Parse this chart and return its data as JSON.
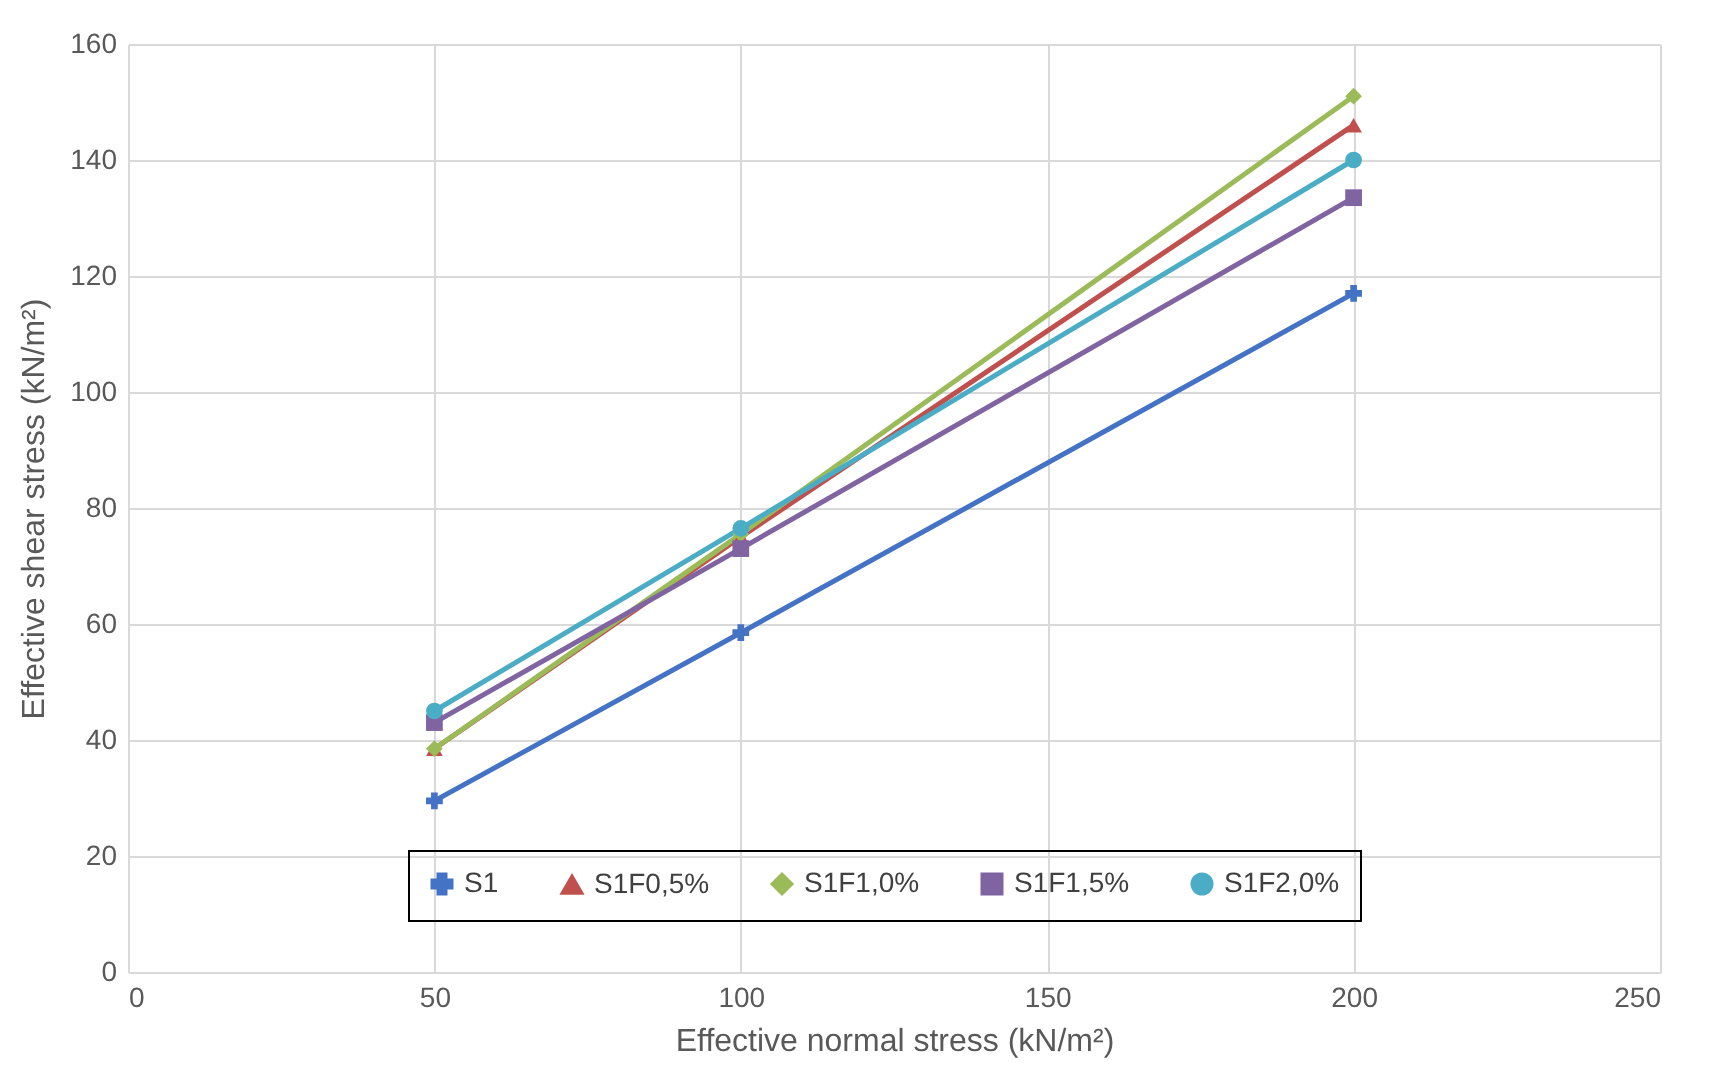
{
  "chart_data": {
    "type": "line",
    "xlabel": "Effective normal stress (kN/m²)",
    "ylabel": "Effective shear stress (kN/m²)",
    "x": [
      50,
      100,
      200
    ],
    "series": [
      {
        "name": "S1",
        "color": "#4472c4",
        "marker": "cross",
        "values": [
          29.5,
          58.5,
          117
        ]
      },
      {
        "name": "S1F0,5%",
        "color": "#c0504d",
        "marker": "triangle",
        "values": [
          38.5,
          75,
          146
        ]
      },
      {
        "name": "S1F1,0%",
        "color": "#9bbb59",
        "marker": "diamond",
        "values": [
          38.5,
          75.5,
          151
        ]
      },
      {
        "name": "S1F1,5%",
        "color": "#8064a2",
        "marker": "square",
        "values": [
          43,
          73,
          133.5
        ]
      },
      {
        "name": "S1F2,0%",
        "color": "#4bacc6",
        "marker": "circle",
        "values": [
          45,
          76.5,
          140
        ]
      }
    ],
    "xlim": [
      0,
      250
    ],
    "xticks": [
      0,
      50,
      100,
      150,
      200,
      250
    ],
    "ylim": [
      0,
      160
    ],
    "yticks": [
      0,
      20,
      40,
      60,
      80,
      100,
      120,
      140,
      160
    ],
    "grid": true,
    "legend": "bottom",
    "line_style": "solid"
  }
}
